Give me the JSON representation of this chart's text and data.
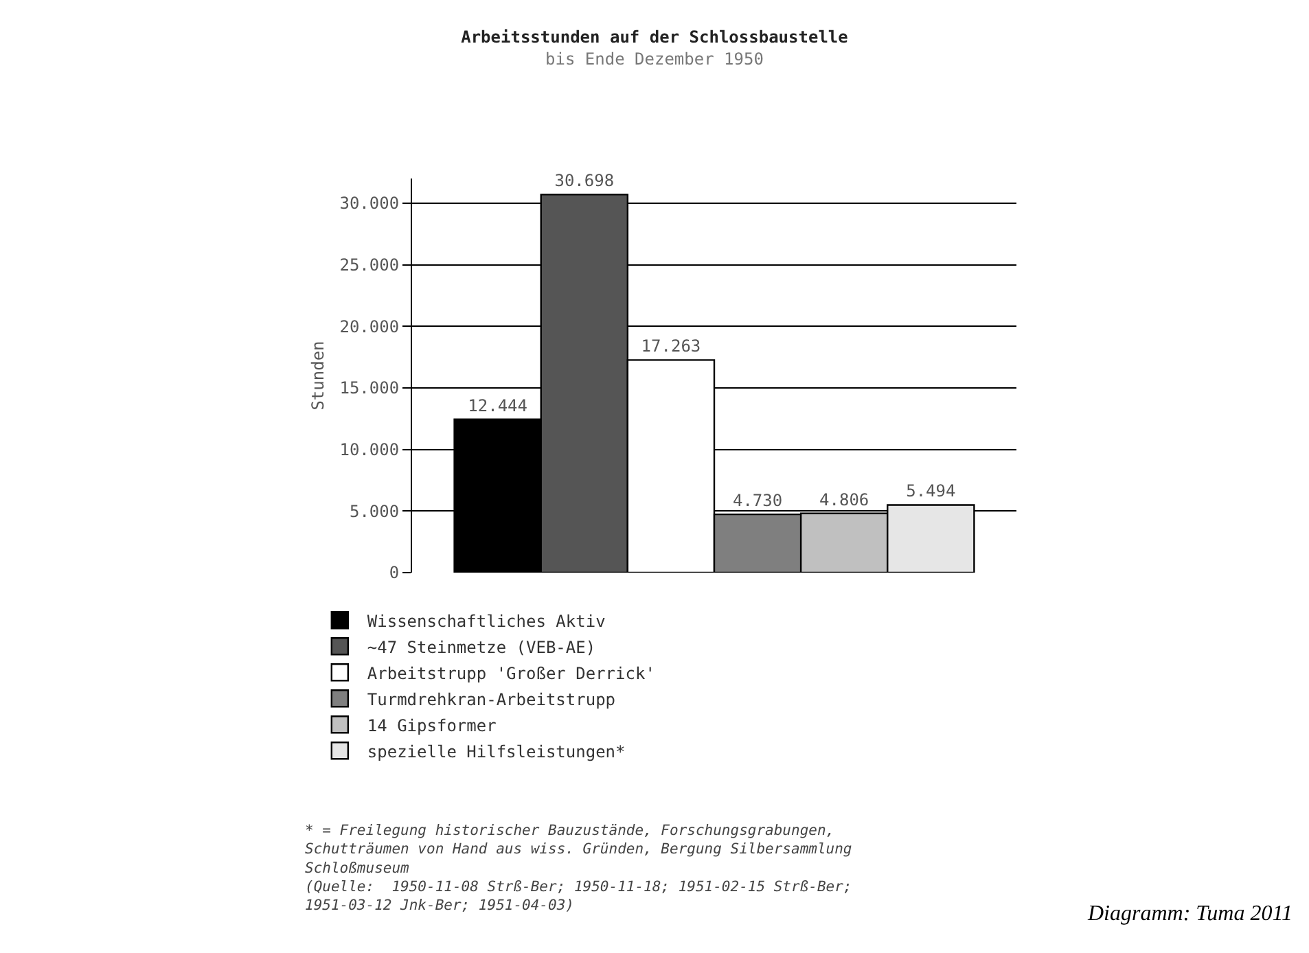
{
  "chart_data": {
    "type": "bar",
    "title": "Arbeitsstunden auf der Schlossbaustelle",
    "subtitle": "bis Ende Dezember 1950",
    "ylabel": "Stunden",
    "categories": [
      null
    ],
    "series": [
      {
        "name": "Wissenschaftliches Aktiv",
        "color": "#000000",
        "values": [
          12444
        ],
        "value_labels": [
          "12.444"
        ]
      },
      {
        "name": "~47 Steinmetze (VEB-AE)",
        "color": "#555555",
        "values": [
          30698
        ],
        "value_labels": [
          "30.698"
        ]
      },
      {
        "name": "Arbeitstrupp 'Großer Derrick'",
        "color": "#ffffff",
        "values": [
          17263
        ],
        "value_labels": [
          "17.263"
        ]
      },
      {
        "name": "Turmdrehkran-Arbeitstrupp",
        "color": "#7f7f7f",
        "values": [
          4730
        ],
        "value_labels": [
          "4.730"
        ]
      },
      {
        "name": "14 Gipsformer",
        "color": "#c0c0c0",
        "values": [
          4806
        ],
        "value_labels": [
          "4.806"
        ]
      },
      {
        "name": "spezielle Hilfsleistungen*",
        "color": "#e6e6e6",
        "values": [
          5494
        ],
        "value_labels": [
          "5.494"
        ]
      }
    ],
    "ylim": [
      0,
      32000
    ],
    "yticks": [
      0,
      {
        "value": 5000,
        "label": "5.000"
      },
      {
        "value": 10000,
        "label": "10.000"
      },
      {
        "value": 15000,
        "label": "15.000"
      },
      {
        "value": 20000,
        "label": "20.000"
      },
      {
        "value": 25000,
        "label": "25.000"
      },
      {
        "value": 30000,
        "label": "30.000"
      }
    ],
    "grid": "y",
    "legend": "bottom",
    "annotations": [
      "* = Freilegung historischer Bauzustände, Forschungsgrabungen, Schutträumen von Hand aus wiss. Gründen, Bergung Silbersammlung Schloßmuseum",
      "(Quelle:  1950-11-08 Strß-Ber; 1950-11-18; 1951-02-15 Strß-Ber; 1951-03-12 Jnk-Ber; 1951-04-03)",
      "Diagramm: Tuma 2011"
    ]
  }
}
